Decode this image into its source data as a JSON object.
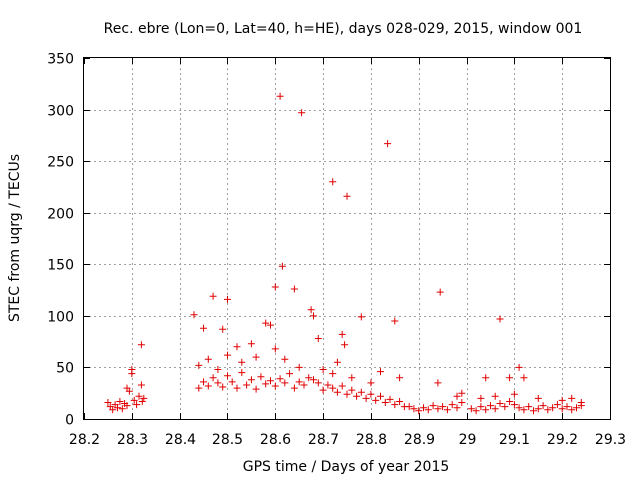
{
  "chart_data": {
    "type": "scatter",
    "title": "Rec. ebre (Lon=0, Lat=40, h=HE), days 028-029, 2015, window 001",
    "xlabel": "GPS time / Days of year 2015",
    "ylabel": "STEC from uqrg / TECUs",
    "xlim": [
      28.2,
      29.3
    ],
    "ylim": [
      0,
      350
    ],
    "xticks": [
      "28.2",
      "28.3",
      "28.4",
      "28.5",
      "28.6",
      "28.7",
      "28.8",
      "28.9",
      "29",
      "29.1",
      "29.2",
      "29.3"
    ],
    "yticks": [
      "0",
      "50",
      "100",
      "150",
      "200",
      "250",
      "300",
      "350"
    ],
    "grid": true,
    "marker": "+",
    "color": "#e00000",
    "series": [
      {
        "name": "STEC",
        "points": [
          [
            28.25,
            16
          ],
          [
            28.255,
            12
          ],
          [
            28.26,
            9
          ],
          [
            28.265,
            14
          ],
          [
            28.27,
            11
          ],
          [
            28.275,
            17
          ],
          [
            28.28,
            10
          ],
          [
            28.285,
            15
          ],
          [
            28.29,
            13
          ],
          [
            28.29,
            30
          ],
          [
            28.295,
            27
          ],
          [
            28.3,
            48
          ],
          [
            28.3,
            44
          ],
          [
            28.305,
            18
          ],
          [
            28.31,
            14
          ],
          [
            28.315,
            22
          ],
          [
            28.32,
            33
          ],
          [
            28.32,
            72
          ],
          [
            28.322,
            17
          ],
          [
            28.325,
            20
          ],
          [
            28.43,
            101
          ],
          [
            28.45,
            88
          ],
          [
            28.47,
            119
          ],
          [
            28.49,
            87
          ],
          [
            28.5,
            116
          ],
          [
            28.52,
            70
          ],
          [
            28.55,
            73
          ],
          [
            28.58,
            93
          ],
          [
            28.59,
            91
          ],
          [
            28.6,
            128
          ],
          [
            28.61,
            313
          ],
          [
            28.615,
            148
          ],
          [
            28.64,
            126
          ],
          [
            28.655,
            297
          ],
          [
            28.675,
            106
          ],
          [
            28.68,
            100
          ],
          [
            28.69,
            78
          ],
          [
            28.72,
            230
          ],
          [
            28.74,
            82
          ],
          [
            28.745,
            72
          ],
          [
            28.75,
            216
          ],
          [
            28.78,
            99
          ],
          [
            28.835,
            267
          ],
          [
            28.85,
            95
          ],
          [
            28.945,
            123
          ],
          [
            29.07,
            97
          ],
          [
            29.04,
            40
          ],
          [
            29.09,
            40
          ],
          [
            29.11,
            50
          ],
          [
            29.12,
            40
          ],
          [
            28.44,
            30
          ],
          [
            28.45,
            36
          ],
          [
            28.46,
            32
          ],
          [
            28.47,
            40
          ],
          [
            28.48,
            35
          ],
          [
            28.49,
            31
          ],
          [
            28.5,
            42
          ],
          [
            28.51,
            36
          ],
          [
            28.52,
            30
          ],
          [
            28.53,
            45
          ],
          [
            28.54,
            33
          ],
          [
            28.55,
            38
          ],
          [
            28.56,
            29
          ],
          [
            28.57,
            41
          ],
          [
            28.58,
            34
          ],
          [
            28.59,
            37
          ],
          [
            28.6,
            32
          ],
          [
            28.61,
            39
          ],
          [
            28.62,
            35
          ],
          [
            28.63,
            44
          ],
          [
            28.64,
            30
          ],
          [
            28.65,
            36
          ],
          [
            28.66,
            33
          ],
          [
            28.67,
            40
          ],
          [
            28.68,
            38
          ],
          [
            28.69,
            35
          ],
          [
            28.7,
            28
          ],
          [
            28.71,
            33
          ],
          [
            28.72,
            30
          ],
          [
            28.73,
            26
          ],
          [
            28.74,
            32
          ],
          [
            28.75,
            24
          ],
          [
            28.76,
            28
          ],
          [
            28.77,
            22
          ],
          [
            28.78,
            26
          ],
          [
            28.79,
            20
          ],
          [
            28.8,
            24
          ],
          [
            28.81,
            18
          ],
          [
            28.82,
            22
          ],
          [
            28.83,
            16
          ],
          [
            28.84,
            19
          ],
          [
            28.85,
            14
          ],
          [
            28.86,
            17
          ],
          [
            28.87,
            12
          ],
          [
            28.44,
            52
          ],
          [
            28.46,
            58
          ],
          [
            28.48,
            48
          ],
          [
            28.5,
            62
          ],
          [
            28.53,
            55
          ],
          [
            28.56,
            60
          ],
          [
            28.6,
            68
          ],
          [
            28.62,
            58
          ],
          [
            28.65,
            50
          ],
          [
            28.7,
            48
          ],
          [
            28.72,
            44
          ],
          [
            28.73,
            55
          ],
          [
            28.76,
            40
          ],
          [
            28.8,
            35
          ],
          [
            28.82,
            46
          ],
          [
            28.86,
            40
          ],
          [
            28.88,
            12
          ],
          [
            28.89,
            10
          ],
          [
            28.9,
            8
          ],
          [
            28.91,
            11
          ],
          [
            28.92,
            9
          ],
          [
            28.93,
            13
          ],
          [
            28.94,
            10
          ],
          [
            28.95,
            12
          ],
          [
            28.96,
            9
          ],
          [
            28.97,
            14
          ],
          [
            28.98,
            11
          ],
          [
            28.99,
            16
          ],
          [
            28.94,
            35
          ],
          [
            28.98,
            22
          ],
          [
            28.99,
            25
          ],
          [
            29.01,
            10
          ],
          [
            29.02,
            8
          ],
          [
            29.03,
            12
          ],
          [
            29.04,
            9
          ],
          [
            29.05,
            13
          ],
          [
            29.06,
            10
          ],
          [
            29.07,
            15
          ],
          [
            29.08,
            12
          ],
          [
            29.09,
            17
          ],
          [
            29.1,
            14
          ],
          [
            29.11,
            11
          ],
          [
            29.12,
            9
          ],
          [
            29.13,
            12
          ],
          [
            29.14,
            8
          ],
          [
            29.15,
            10
          ],
          [
            29.16,
            13
          ],
          [
            29.17,
            9
          ],
          [
            29.18,
            11
          ],
          [
            29.19,
            14
          ],
          [
            29.2,
            10
          ],
          [
            29.21,
            12
          ],
          [
            29.22,
            9
          ],
          [
            29.23,
            11
          ],
          [
            29.24,
            13
          ],
          [
            29.03,
            20
          ],
          [
            29.06,
            22
          ],
          [
            29.1,
            24
          ],
          [
            29.15,
            20
          ],
          [
            29.2,
            18
          ],
          [
            29.22,
            20
          ],
          [
            29.24,
            16
          ]
        ]
      }
    ]
  }
}
